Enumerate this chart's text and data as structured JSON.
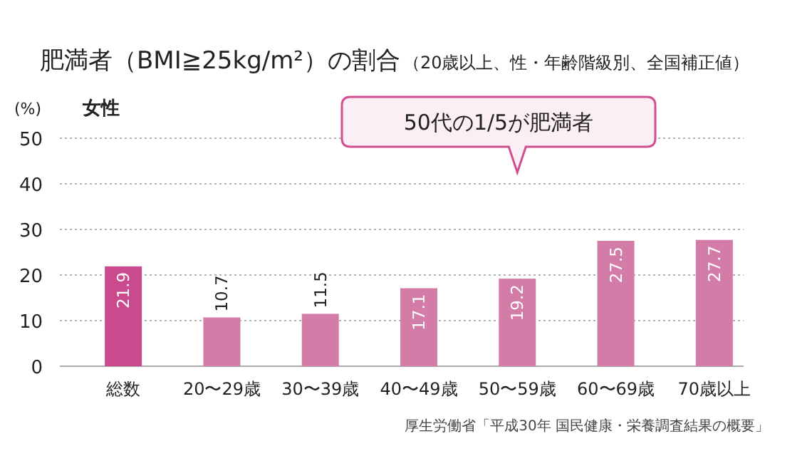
{
  "chart_data": {
    "type": "bar",
    "title": "肥満者（BMI≧25kg/m²）の割合",
    "subtitle": "（20歳以上、性・年齢階級別、全国補正値）",
    "ylabel": "(%)",
    "categories": [
      "総数",
      "20〜29歳",
      "30〜39歳",
      "40〜49歳",
      "50〜59歳",
      "60〜69歳",
      "70歳以上"
    ],
    "values": [
      21.9,
      10.7,
      11.5,
      17.1,
      19.2,
      27.5,
      27.7
    ],
    "colors": [
      "#c94b8e",
      "#d47ca8",
      "#d47ca8",
      "#d47ca8",
      "#d47ca8",
      "#d47ca8",
      "#d47ca8"
    ],
    "ylim": [
      0,
      50
    ],
    "yticks": [
      0,
      10,
      20,
      30,
      40,
      50
    ],
    "grid": "y",
    "data_labels": true,
    "annotations": [
      "女性",
      "50代の1/5が肥満者",
      "厚生労働省「平成30年 国民健康・栄養調査結果の概要」"
    ]
  }
}
